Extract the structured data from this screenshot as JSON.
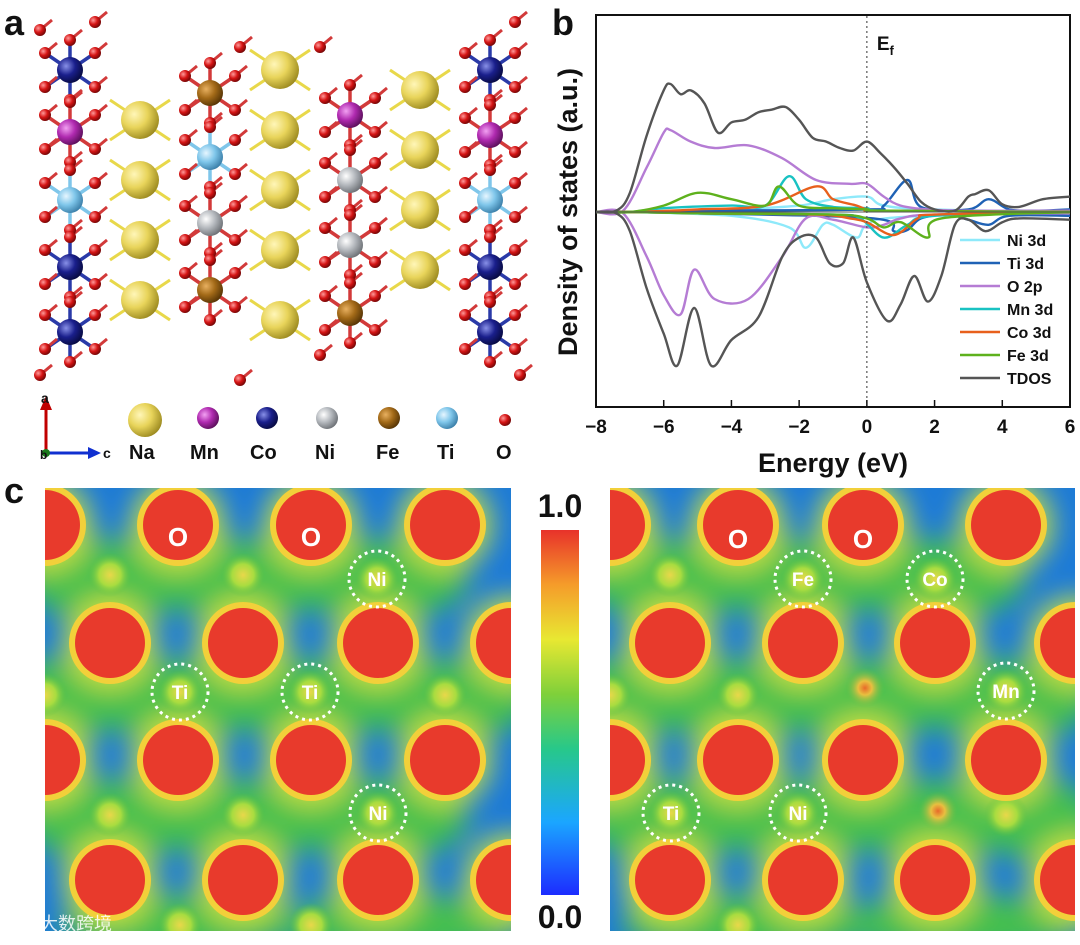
{
  "panels": {
    "a": "a",
    "b": "b",
    "c": "c"
  },
  "crystal": {
    "axis_a": "a",
    "axis_b": "b",
    "axis_c": "c",
    "legend": [
      {
        "label": "Na",
        "color": "#e8d45a"
      },
      {
        "label": "Mn",
        "color": "#b02ab0"
      },
      {
        "label": "Co",
        "color": "#1a1f8c"
      },
      {
        "label": "Ni",
        "color": "#b5b9be"
      },
      {
        "label": "Fe",
        "color": "#a36a18"
      },
      {
        "label": "Ti",
        "color": "#7fc6ea"
      },
      {
        "label": "O",
        "color": "#d61515"
      }
    ]
  },
  "chart_data": {
    "type": "line",
    "xlabel": "Energy (eV)",
    "ylabel": "Density of states (a.u.)",
    "xlim": [
      -8,
      6
    ],
    "xticks": [
      "−8",
      "−6",
      "−4",
      "−2",
      "0",
      "2",
      "4",
      "6"
    ],
    "fermi_label": "E",
    "fermi_sub": "f",
    "fermi_x": 0,
    "series": [
      {
        "name": "Ni 3d",
        "color": "#8ee9fa",
        "up": [
          [
            -8,
            0
          ],
          [
            -7,
            0
          ],
          [
            -4,
            0.02
          ],
          [
            -2,
            0.05
          ],
          [
            -1,
            0.1
          ],
          [
            0,
            0.12
          ],
          [
            0.5,
            0.05
          ],
          [
            2,
            0.02
          ],
          [
            6,
            0
          ]
        ],
        "down": [
          [
            -8,
            0
          ],
          [
            -7,
            0
          ],
          [
            -4,
            -0.03
          ],
          [
            -2.3,
            -0.12
          ],
          [
            -1.8,
            -0.28
          ],
          [
            -1.3,
            -0.1
          ],
          [
            -1,
            -0.1
          ],
          [
            -0.3,
            -0.2
          ],
          [
            0,
            -0.1
          ],
          [
            1,
            -0.04
          ],
          [
            6,
            0
          ]
        ]
      },
      {
        "name": "Ti 3d",
        "color": "#1f62b5",
        "up": [
          [
            -8,
            0
          ],
          [
            -7,
            0
          ],
          [
            -5,
            0.01
          ],
          [
            0,
            0.02
          ],
          [
            0.5,
            0.05
          ],
          [
            1.2,
            0.25
          ],
          [
            1.6,
            0.04
          ],
          [
            3,
            0.02
          ],
          [
            3.6,
            0.1
          ],
          [
            4.2,
            0.02
          ],
          [
            5,
            0.01
          ],
          [
            6,
            0.02
          ]
        ],
        "down": [
          [
            -8,
            0
          ],
          [
            -7,
            0
          ],
          [
            -5,
            -0.01
          ],
          [
            0.2,
            -0.05
          ],
          [
            0.8,
            -0.15
          ],
          [
            1.2,
            -0.14
          ],
          [
            1.6,
            -0.05
          ],
          [
            2.4,
            -0.02
          ],
          [
            3,
            -0.06
          ],
          [
            3.6,
            -0.1
          ],
          [
            4.2,
            -0.03
          ],
          [
            6,
            -0.03
          ]
        ]
      },
      {
        "name": "O 2p",
        "color": "#b57cd4",
        "up": [
          [
            -8,
            0
          ],
          [
            -7.2,
            0.01
          ],
          [
            -6.5,
            0.35
          ],
          [
            -6,
            0.62
          ],
          [
            -5.8,
            0.64
          ],
          [
            -5.2,
            0.55
          ],
          [
            -4.5,
            0.5
          ],
          [
            -3.5,
            0.52
          ],
          [
            -2.5,
            0.42
          ],
          [
            -1.5,
            0.25
          ],
          [
            -0.5,
            0.22
          ],
          [
            0,
            0.22
          ],
          [
            0.5,
            0.12
          ],
          [
            1,
            0.05
          ],
          [
            1.8,
            0.02
          ],
          [
            3,
            0.01
          ],
          [
            6,
            0.01
          ]
        ],
        "down": [
          [
            -8,
            0
          ],
          [
            -7.2,
            -0.01
          ],
          [
            -6.5,
            -0.35
          ],
          [
            -6,
            -0.65
          ],
          [
            -5.5,
            -0.8
          ],
          [
            -5.1,
            -0.45
          ],
          [
            -4.5,
            -0.68
          ],
          [
            -3.5,
            -0.68
          ],
          [
            -2.5,
            -0.35
          ],
          [
            -1.8,
            -0.05
          ],
          [
            -1,
            -0.06
          ],
          [
            0,
            -0.12
          ],
          [
            0.5,
            -0.1
          ],
          [
            1,
            -0.05
          ],
          [
            2,
            -0.02
          ],
          [
            6,
            -0.01
          ]
        ]
      },
      {
        "name": "Mn 3d",
        "color": "#19c2c2",
        "up": [
          [
            -8,
            0
          ],
          [
            -7,
            0
          ],
          [
            -6,
            0.03
          ],
          [
            -4,
            0.05
          ],
          [
            -3,
            0.05
          ],
          [
            -2.3,
            0.28
          ],
          [
            -1.8,
            0.1
          ],
          [
            -1,
            0.04
          ],
          [
            0,
            0.03
          ],
          [
            0.5,
            0.01
          ],
          [
            6,
            0
          ]
        ],
        "down": [
          [
            -8,
            0
          ],
          [
            -7,
            0
          ],
          [
            -5,
            -0.01
          ],
          [
            -1,
            -0.02
          ],
          [
            -0.2,
            -0.05
          ],
          [
            0.5,
            -0.2
          ],
          [
            1.2,
            -0.1
          ],
          [
            2,
            -0.03
          ],
          [
            6,
            0
          ]
        ]
      },
      {
        "name": "Co 3d",
        "color": "#e8601c",
        "up": [
          [
            -8,
            0
          ],
          [
            -7,
            0
          ],
          [
            -5,
            0.02
          ],
          [
            -3,
            0.05
          ],
          [
            -1.5,
            0.2
          ],
          [
            -1,
            0.1
          ],
          [
            -0.3,
            0.05
          ],
          [
            0,
            0.02
          ],
          [
            0.5,
            0.01
          ],
          [
            6,
            0
          ]
        ],
        "down": [
          [
            -8,
            0
          ],
          [
            -7,
            0
          ],
          [
            -5,
            -0.01
          ],
          [
            -1.5,
            -0.02
          ],
          [
            -0.5,
            -0.05
          ],
          [
            0,
            -0.08
          ],
          [
            0.8,
            -0.18
          ],
          [
            1.5,
            -0.05
          ],
          [
            2,
            -0.02
          ],
          [
            6,
            0
          ]
        ]
      },
      {
        "name": "Fe 3d",
        "color": "#5eb11d",
        "up": [
          [
            -8,
            0
          ],
          [
            -7,
            0
          ],
          [
            -6,
            0.05
          ],
          [
            -5,
            0.15
          ],
          [
            -4,
            0.1
          ],
          [
            -3,
            0.05
          ],
          [
            -2.6,
            0.2
          ],
          [
            -2,
            0.05
          ],
          [
            -1,
            0.03
          ],
          [
            0,
            0.02
          ],
          [
            0.5,
            0.01
          ],
          [
            6,
            0
          ]
        ],
        "down": [
          [
            -8,
            0
          ],
          [
            -7,
            0
          ],
          [
            -5,
            -0.01
          ],
          [
            -1,
            -0.02
          ],
          [
            0,
            -0.05
          ],
          [
            0.5,
            -0.12
          ],
          [
            1,
            -0.08
          ],
          [
            1.8,
            -0.2
          ],
          [
            2.2,
            -0.05
          ],
          [
            6,
            0
          ]
        ]
      },
      {
        "name": "TDOS",
        "color": "#555555",
        "up": [
          [
            -8,
            0
          ],
          [
            -7.4,
            0.01
          ],
          [
            -7,
            0.15
          ],
          [
            -6.5,
            0.6
          ],
          [
            -6,
            0.95
          ],
          [
            -5.8,
            1.0
          ],
          [
            -5.5,
            0.92
          ],
          [
            -5.2,
            0.95
          ],
          [
            -4.8,
            0.85
          ],
          [
            -4.4,
            0.62
          ],
          [
            -4,
            0.7
          ],
          [
            -3.6,
            0.72
          ],
          [
            -3.2,
            0.78
          ],
          [
            -2.8,
            0.8
          ],
          [
            -2.4,
            0.82
          ],
          [
            -2,
            0.72
          ],
          [
            -1.6,
            0.58
          ],
          [
            -1.2,
            0.55
          ],
          [
            -0.8,
            0.5
          ],
          [
            -0.4,
            0.48
          ],
          [
            0,
            0.55
          ],
          [
            0.4,
            0.46
          ],
          [
            0.8,
            0.35
          ],
          [
            1.2,
            0.22
          ],
          [
            1.6,
            0.08
          ],
          [
            2,
            0.02
          ],
          [
            2.6,
            0.01
          ],
          [
            3,
            0.12
          ],
          [
            3.2,
            0.14
          ],
          [
            3.6,
            0.17
          ],
          [
            4,
            0.06
          ],
          [
            4.5,
            0.04
          ],
          [
            5.2,
            0.1
          ],
          [
            6,
            0.12
          ]
        ],
        "down": [
          [
            -8,
            0
          ],
          [
            -7.4,
            -0.01
          ],
          [
            -7,
            -0.15
          ],
          [
            -6.5,
            -0.6
          ],
          [
            -6,
            -0.95
          ],
          [
            -5.6,
            -1.2
          ],
          [
            -5.1,
            -0.75
          ],
          [
            -4.6,
            -1.2
          ],
          [
            -4,
            -1.0
          ],
          [
            -3.2,
            -0.82
          ],
          [
            -2.5,
            -0.35
          ],
          [
            -2,
            -0.2
          ],
          [
            -1.5,
            -0.2
          ],
          [
            -1.1,
            -0.4
          ],
          [
            -0.7,
            -0.4
          ],
          [
            -0.4,
            -0.2
          ],
          [
            0,
            -0.55
          ],
          [
            0.6,
            -0.85
          ],
          [
            1,
            -0.72
          ],
          [
            1.4,
            -0.5
          ],
          [
            1.8,
            -0.7
          ],
          [
            2.2,
            -0.5
          ],
          [
            2.6,
            -0.1
          ],
          [
            3,
            -0.06
          ],
          [
            3.5,
            -0.15
          ],
          [
            4,
            -0.08
          ],
          [
            4.5,
            -0.05
          ],
          [
            6,
            -0.06
          ]
        ]
      }
    ]
  },
  "elf": {
    "colorbar_max": "1.0",
    "colorbar_min": "0.0",
    "left_labels": [
      "O",
      "O",
      "Ni",
      "Ti",
      "Ti",
      "Ni"
    ],
    "right_labels": [
      "O",
      "O",
      "Fe",
      "Co",
      "Mn",
      "Ti",
      "Ni"
    ]
  },
  "watermark": "大数跨境"
}
